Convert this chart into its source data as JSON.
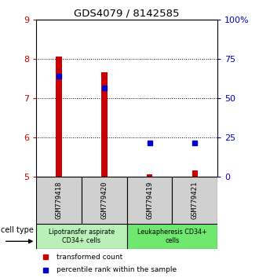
{
  "title": "GDS4079 / 8142585",
  "samples": [
    "GSM779418",
    "GSM779420",
    "GSM779419",
    "GSM779421"
  ],
  "red_values": [
    8.05,
    7.65,
    5.05,
    5.15
  ],
  "blue_values": [
    7.55,
    7.25,
    5.85,
    5.85
  ],
  "red_base": 5.0,
  "ylim": [
    5.0,
    9.0
  ],
  "yticks_left": [
    5,
    6,
    7,
    8,
    9
  ],
  "yticks_right": [
    0,
    25,
    50,
    75,
    100
  ],
  "group1_label": "Lipotransfer aspirate\nCD34+ cells",
  "group2_label": "Leukapheresis CD34+\ncells",
  "group1_color": "#b8f0b8",
  "group2_color": "#70e870",
  "sample_box_color": "#d0d0d0",
  "red_color": "#cc0000",
  "blue_color": "#0000cc",
  "legend_red_label": "transformed count",
  "legend_blue_label": "percentile rank within the sample",
  "cell_type_label": "cell type",
  "bar_width": 0.13,
  "x_positions": [
    0.5,
    1.5,
    2.5,
    3.5
  ]
}
